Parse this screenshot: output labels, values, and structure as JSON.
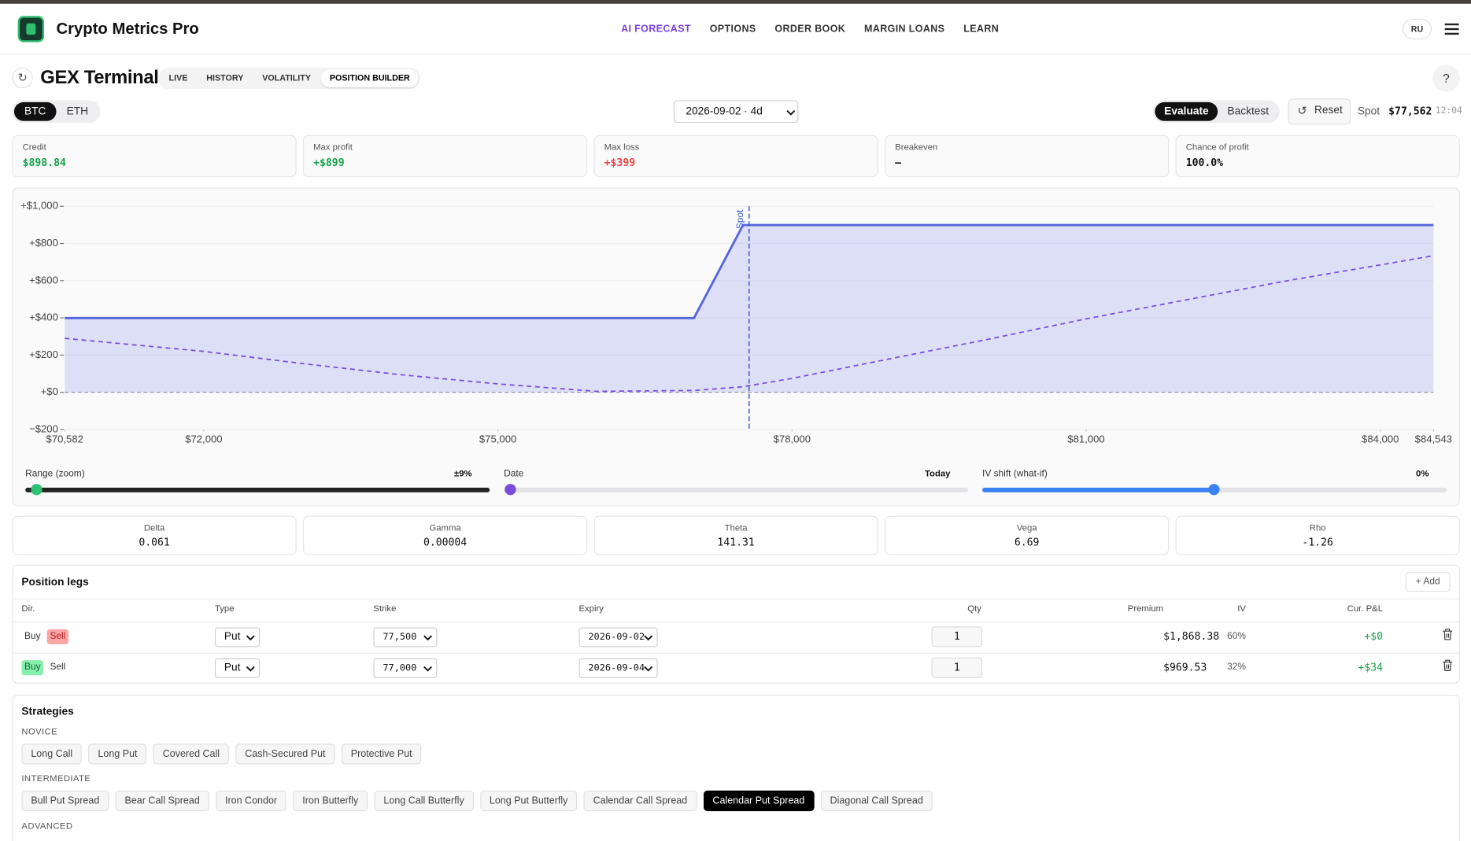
{
  "header": {
    "brand": "Crypto Metrics Pro",
    "nav": [
      "AI FORECAST",
      "OPTIONS",
      "ORDER BOOK",
      "MARGIN LOANS",
      "LEARN"
    ],
    "nav_active": 0,
    "lang": "RU"
  },
  "toolbar": {
    "title": "GEX Terminal",
    "tabs": [
      "LIVE",
      "HISTORY",
      "VOLATILITY",
      "POSITION BUILDER"
    ],
    "tab_active": 3,
    "assets": [
      "BTC",
      "ETH"
    ],
    "asset_active": 0,
    "expiry": "2026-09-02 · 4d",
    "modes": [
      "Evaluate",
      "Backtest"
    ],
    "mode_active": 0,
    "reset": "Reset",
    "spot_label": "Spot",
    "spot": "$77,562",
    "time": "12:04",
    "help": "?"
  },
  "summary": [
    {
      "label": "Credit",
      "value": "$898.84",
      "color": "#16a34a"
    },
    {
      "label": "Max profit",
      "value": "+$899",
      "color": "#16a34a"
    },
    {
      "label": "Max loss",
      "value": "+$399",
      "color": "#ef4444"
    },
    {
      "label": "Breakeven",
      "value": "–",
      "color": "#111111"
    },
    {
      "label": "Chance of profit",
      "value": "100.0%",
      "color": "#111111"
    }
  ],
  "chart_data": {
    "type": "line",
    "x": [
      70582,
      72000,
      73000,
      74000,
      75000,
      76000,
      77000,
      77500,
      78000,
      79000,
      80000,
      81000,
      82000,
      83000,
      84000,
      84543
    ],
    "series": [
      {
        "color": "#5566dd",
        "dashed": false,
        "fill": "rgba(102,116,230,0.2)",
        "values": [
          399,
          399,
          399,
          399,
          399,
          399,
          399,
          899,
          899,
          899,
          899,
          899,
          899,
          899,
          899,
          899
        ]
      },
      {
        "color": "#7c4ddb",
        "dashed": true,
        "values": [
          290,
          220,
          155,
          95,
          45,
          5,
          10,
          30,
          75,
          180,
          285,
          395,
          495,
          595,
          685,
          735
        ]
      }
    ],
    "xlim": [
      70582,
      84543
    ],
    "xticks": [
      {
        "value": 70582,
        "label": "$70,582"
      },
      {
        "value": 72000,
        "label": "$72,000"
      },
      {
        "value": 75000,
        "label": "$75,000"
      },
      {
        "value": 78000,
        "label": "$78,000"
      },
      {
        "value": 81000,
        "label": "$81,000"
      },
      {
        "value": 84000,
        "label": "$84,000"
      },
      {
        "value": 84543,
        "label": "$84,543"
      }
    ],
    "ylim": [
      -200,
      1000
    ],
    "yticks": [
      {
        "value": -200,
        "label": "−$200"
      },
      {
        "value": 0,
        "label": "+$0"
      },
      {
        "value": 200,
        "label": "+$200"
      },
      {
        "value": 400,
        "label": "+$400"
      },
      {
        "value": 600,
        "label": "+$600"
      },
      {
        "value": 800,
        "label": "+$800"
      },
      {
        "value": 1000,
        "label": "+$1,000"
      }
    ],
    "grid": true,
    "spot_line": {
      "label": "Spot",
      "x": 77562,
      "color": "#3b5bdb"
    }
  },
  "sliders": [
    {
      "label": "Range (zoom)",
      "value": "±9%"
    },
    {
      "label": "Date",
      "value": "Today"
    },
    {
      "label": "IV shift (what-if)",
      "value": "0%"
    }
  ],
  "greeks": [
    {
      "label": "Delta",
      "value": "0.061"
    },
    {
      "label": "Gamma",
      "value": "0.00004"
    },
    {
      "label": "Theta",
      "value": "141.31"
    },
    {
      "label": "Vega",
      "value": "6.69"
    },
    {
      "label": "Rho",
      "value": "-1.26"
    }
  ],
  "legs": {
    "title": "Position legs",
    "add": "Add",
    "columns": [
      "Dir.",
      "Type",
      "Strike",
      "Expiry",
      "Qty",
      "Premium",
      "IV",
      "Cur. P&L"
    ],
    "rows": [
      {
        "dir": [
          "Buy",
          "Sell"
        ],
        "dir_active": 1,
        "type": "Put",
        "strike": "77,500",
        "expiry": "2026-09-02",
        "qty": "1",
        "premium": "$1,868.38",
        "iv": "60%",
        "pnl": "+$0"
      },
      {
        "dir": [
          "Buy",
          "Sell"
        ],
        "dir_active": 0,
        "type": "Put",
        "strike": "77,000",
        "expiry": "2026-09-04",
        "qty": "1",
        "premium": "$969.53",
        "iv": "32%",
        "pnl": "+$34"
      }
    ]
  },
  "strategies": {
    "title": "Strategies",
    "groups": [
      {
        "name": "NOVICE",
        "items": [
          "Long Call",
          "Long Put",
          "Covered Call",
          "Cash-Secured Put",
          "Protective Put"
        ]
      },
      {
        "name": "INTERMEDIATE",
        "items": [
          "Bull Put Spread",
          "Bear Call Spread",
          "Iron Condor",
          "Iron Butterfly",
          "Long Call Butterfly",
          "Long Put Butterfly",
          "Calendar Call Spread",
          "Calendar Put Spread",
          "Diagonal Call Spread"
        ]
      },
      {
        "name": "ADVANCED",
        "items": []
      }
    ],
    "selected": [
      1,
      7
    ]
  }
}
